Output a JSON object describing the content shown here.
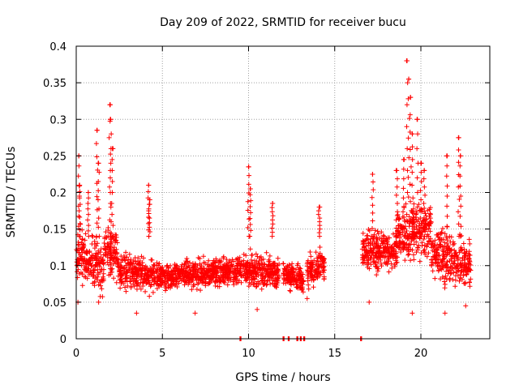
{
  "chart_data": {
    "type": "scatter",
    "title": "Day 209 of 2022, SRMTID for receiver bucu",
    "xlabel": "GPS time / hours",
    "ylabel": "SRMTID / TECUs",
    "xlim": [
      0,
      24
    ],
    "ylim": [
      0,
      0.4
    ],
    "x_ticks": [
      0,
      5,
      10,
      15,
      20
    ],
    "x_tick_labels": [
      "0",
      "5",
      "10",
      "15",
      "20"
    ],
    "y_ticks": [
      0,
      0.05,
      0.1,
      0.15,
      0.2,
      0.25,
      0.3,
      0.35,
      0.4
    ],
    "y_tick_labels": [
      "0",
      "0.05",
      "0.1",
      "0.15",
      "0.2",
      "0.25",
      "0.3",
      "0.35",
      "0.4"
    ],
    "grid": true,
    "marker": "+",
    "color": "#ff0000",
    "series": [
      {
        "name": "SRMTID",
        "segments": [
          {
            "x0": 0.0,
            "x1": 1.6,
            "y0": 0.12,
            "y1": 0.095,
            "spread": 0.045
          },
          {
            "x0": 1.6,
            "x1": 2.4,
            "y0": 0.13,
            "y1": 0.11,
            "spread": 0.045
          },
          {
            "x0": 2.4,
            "x1": 4.5,
            "y0": 0.095,
            "y1": 0.085,
            "spread": 0.03
          },
          {
            "x0": 4.5,
            "x1": 8.0,
            "y0": 0.085,
            "y1": 0.09,
            "spread": 0.025
          },
          {
            "x0": 8.0,
            "x1": 10.0,
            "y0": 0.09,
            "y1": 0.095,
            "spread": 0.025
          },
          {
            "x0": 10.0,
            "x1": 11.8,
            "y0": 0.095,
            "y1": 0.09,
            "spread": 0.03
          },
          {
            "x0": 12.0,
            "x1": 13.2,
            "y0": 0.09,
            "y1": 0.08,
            "spread": 0.025
          },
          {
            "x0": 13.4,
            "x1": 14.4,
            "y0": 0.09,
            "y1": 0.1,
            "spread": 0.03
          },
          {
            "x0": 16.6,
            "x1": 18.6,
            "y0": 0.12,
            "y1": 0.12,
            "spread": 0.035
          },
          {
            "x0": 18.6,
            "x1": 20.6,
            "y0": 0.14,
            "y1": 0.15,
            "spread": 0.05
          },
          {
            "x0": 20.6,
            "x1": 22.9,
            "y0": 0.12,
            "y1": 0.1,
            "spread": 0.045
          }
        ],
        "peaks": [
          [
            0.15,
            0.25
          ],
          [
            0.2,
            0.21
          ],
          [
            0.7,
            0.2
          ],
          [
            1.2,
            0.285
          ],
          [
            1.3,
            0.24
          ],
          [
            1.95,
            0.32
          ],
          [
            2.0,
            0.3
          ],
          [
            2.1,
            0.26
          ],
          [
            4.2,
            0.21
          ],
          [
            4.25,
            0.19
          ],
          [
            10.0,
            0.235
          ],
          [
            10.1,
            0.205
          ],
          [
            11.4,
            0.185
          ],
          [
            14.1,
            0.18
          ],
          [
            17.2,
            0.225
          ],
          [
            18.6,
            0.23
          ],
          [
            19.0,
            0.245
          ],
          [
            19.2,
            0.38
          ],
          [
            19.3,
            0.355
          ],
          [
            19.4,
            0.33
          ],
          [
            19.5,
            0.28
          ],
          [
            19.8,
            0.3
          ],
          [
            20.0,
            0.24
          ],
          [
            20.2,
            0.23
          ],
          [
            21.5,
            0.25
          ],
          [
            22.2,
            0.275
          ],
          [
            22.3,
            0.25
          ]
        ],
        "lows": [
          [
            0.1,
            0.05
          ],
          [
            1.3,
            0.05
          ],
          [
            3.5,
            0.035
          ],
          [
            6.9,
            0.035
          ],
          [
            10.5,
            0.04
          ],
          [
            13.4,
            0.055
          ],
          [
            17.0,
            0.05
          ],
          [
            19.5,
            0.035
          ],
          [
            21.4,
            0.035
          ],
          [
            22.6,
            0.045
          ]
        ],
        "zeros": [
          9.5,
          12.0,
          12.3,
          12.8,
          13.0,
          13.2,
          16.5
        ]
      }
    ]
  }
}
